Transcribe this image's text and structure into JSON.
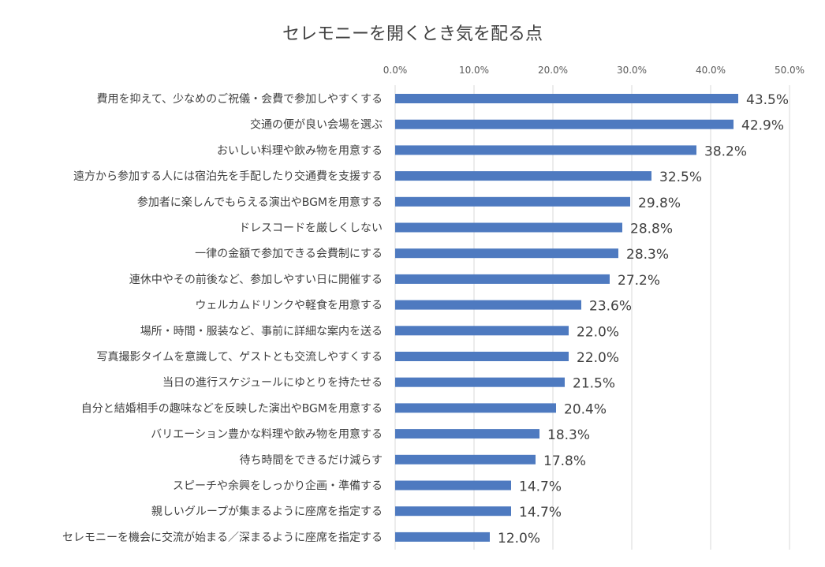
{
  "chart_data": {
    "type": "bar",
    "orientation": "horizontal",
    "title": "セレモニーを開くとき気を配る点",
    "xlim": [
      0,
      50
    ],
    "x_ticks": [
      "0.0%",
      "10.0%",
      "20.0%",
      "30.0%",
      "40.0%",
      "50.0%"
    ],
    "x_tick_values": [
      0,
      10,
      20,
      30,
      40,
      50
    ],
    "x_axis_position": "top",
    "grid": true,
    "categories": [
      "費用を抑えて、少なめのご祝儀・会費で参加しやすくする",
      "交通の便が良い会場を選ぶ",
      "おいしい料理や飲み物を用意する",
      "遠方から参加する人には宿泊先を手配したり交通費を支援する",
      "参加者に楽しんでもらえる演出やBGMを用意する",
      "ドレスコードを厳しくしない",
      "一律の金額で参加できる会費制にする",
      "連休中やその前後など、参加しやすい日に開催する",
      "ウェルカムドリンクや軽食を用意する",
      "場所・時間・服装など、事前に詳細な案内を送る",
      "写真撮影タイムを意識して、ゲストとも交流しやすくする",
      "当日の進行スケジュールにゆとりを持たせる",
      "自分と結婚相手の趣味などを反映した演出やBGMを用意する",
      "バリエーション豊かな料理や飲み物を用意する",
      "待ち時間をできるだけ減らす",
      "スピーチや余興をしっかり企画・準備する",
      "親しいグループが集まるように座席を指定する",
      "セレモニーを機会に交流が始まる／深まるように座席を指定する"
    ],
    "values": [
      43.5,
      42.9,
      38.2,
      32.5,
      29.8,
      28.8,
      28.3,
      27.2,
      23.6,
      22.0,
      22.0,
      21.5,
      20.4,
      18.3,
      17.8,
      14.7,
      14.7,
      12.0
    ],
    "value_labels": [
      "43.5%",
      "42.9%",
      "38.2%",
      "32.5%",
      "29.8%",
      "28.8%",
      "28.3%",
      "27.2%",
      "23.6%",
      "22.0%",
      "22.0%",
      "21.5%",
      "20.4%",
      "18.3%",
      "17.8%",
      "14.7%",
      "14.7%",
      "12.0%"
    ],
    "bar_color": "#4e7ac0",
    "grid_color": "#d9d9d9"
  }
}
